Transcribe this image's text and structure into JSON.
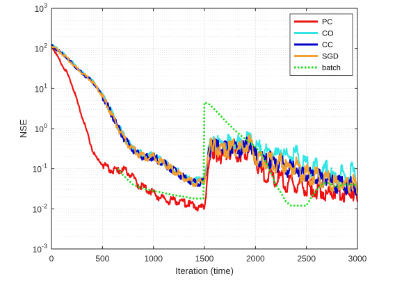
{
  "chart_data": {
    "type": "line",
    "title": "",
    "xlabel": "Iteration (time)",
    "ylabel": "NSE",
    "yscale": "log",
    "xlim": [
      0,
      3000
    ],
    "ylim": [
      0.001,
      1000
    ],
    "xticks": [
      0,
      500,
      1000,
      1500,
      2000,
      2500,
      3000
    ],
    "xtick_labels": [
      "0",
      "500",
      "1000",
      "1500",
      "2000",
      "2500",
      "3000"
    ],
    "yticks": [
      0.001,
      0.01,
      0.1,
      1,
      10,
      100,
      1000
    ],
    "ytick_labels": [
      {
        "base": "10",
        "exp": "-3"
      },
      {
        "base": "10",
        "exp": "-2"
      },
      {
        "base": "10",
        "exp": "-1"
      },
      {
        "base": "10",
        "exp": "0"
      },
      {
        "base": "10",
        "exp": "1"
      },
      {
        "base": "10",
        "exp": "2"
      },
      {
        "base": "10",
        "exp": "3"
      }
    ],
    "grid": true,
    "minor_grid": true,
    "legend_position": "top-right",
    "series": [
      {
        "name": "PC",
        "color": "#ee1111",
        "style": "solid",
        "x": [
          0,
          50,
          100,
          150,
          200,
          250,
          300,
          350,
          400,
          450,
          500,
          550,
          600,
          650,
          700,
          750,
          800,
          850,
          900,
          950,
          1000,
          1050,
          1100,
          1150,
          1200,
          1250,
          1300,
          1350,
          1400,
          1450,
          1500,
          1520,
          1540,
          1560,
          1580,
          1600,
          1650,
          1700,
          1750,
          1800,
          1850,
          1900,
          1950,
          2000,
          2050,
          2100,
          2150,
          2200,
          2250,
          2300,
          2350,
          2400,
          2450,
          2500,
          2550,
          2600,
          2650,
          2700,
          2750,
          2800,
          2850,
          2900,
          2950,
          3000
        ],
        "y": [
          120,
          70,
          40,
          25,
          13,
          5,
          2.0,
          0.8,
          0.3,
          0.17,
          0.13,
          0.1,
          0.09,
          0.09,
          0.1,
          0.08,
          0.06,
          0.04,
          0.035,
          0.03,
          0.025,
          0.02,
          0.018,
          0.016,
          0.016,
          0.015,
          0.014,
          0.013,
          0.012,
          0.01,
          0.012,
          0.03,
          0.12,
          0.22,
          0.26,
          0.27,
          0.22,
          0.2,
          0.28,
          0.22,
          0.24,
          0.26,
          0.3,
          0.2,
          0.08,
          0.06,
          0.07,
          0.05,
          0.06,
          0.04,
          0.05,
          0.035,
          0.045,
          0.03,
          0.035,
          0.025,
          0.03,
          0.02,
          0.03,
          0.025,
          0.025,
          0.02,
          0.03,
          0.015
        ]
      },
      {
        "name": "CO",
        "color": "#33e5e5",
        "style": "solid",
        "x": [
          0,
          50,
          100,
          150,
          200,
          250,
          300,
          350,
          400,
          450,
          500,
          550,
          600,
          650,
          700,
          750,
          800,
          850,
          900,
          950,
          1000,
          1050,
          1100,
          1150,
          1200,
          1250,
          1300,
          1350,
          1400,
          1450,
          1500,
          1520,
          1540,
          1560,
          1580,
          1600,
          1650,
          1700,
          1750,
          1800,
          1850,
          1900,
          1950,
          2000,
          2050,
          2100,
          2150,
          2200,
          2250,
          2300,
          2350,
          2400,
          2450,
          2500,
          2550,
          2600,
          2650,
          2700,
          2750,
          2800,
          2850,
          2900,
          2950,
          3000
        ],
        "y": [
          125,
          100,
          80,
          60,
          45,
          33,
          25,
          20,
          16,
          11,
          7,
          4,
          2.2,
          1.2,
          0.7,
          0.45,
          0.32,
          0.26,
          0.22,
          0.2,
          0.22,
          0.17,
          0.15,
          0.12,
          0.1,
          0.08,
          0.065,
          0.055,
          0.05,
          0.05,
          0.055,
          0.12,
          0.3,
          0.45,
          0.5,
          0.5,
          0.4,
          0.5,
          0.4,
          0.5,
          0.4,
          0.5,
          0.65,
          0.3,
          0.35,
          0.25,
          0.3,
          0.2,
          0.3,
          0.2,
          0.2,
          0.25,
          0.12,
          0.15,
          0.1,
          0.12,
          0.08,
          0.1,
          0.07,
          0.06,
          0.08,
          0.05,
          0.1,
          0.04
        ]
      },
      {
        "name": "CC",
        "color": "#0000cc",
        "style": "solid",
        "x": [
          0,
          50,
          100,
          150,
          200,
          250,
          300,
          350,
          400,
          450,
          500,
          550,
          600,
          650,
          700,
          750,
          800,
          850,
          900,
          950,
          1000,
          1050,
          1100,
          1150,
          1200,
          1250,
          1300,
          1350,
          1400,
          1450,
          1500,
          1520,
          1540,
          1560,
          1580,
          1600,
          1650,
          1700,
          1750,
          1800,
          1850,
          1900,
          1950,
          2000,
          2050,
          2100,
          2150,
          2200,
          2250,
          2300,
          2350,
          2400,
          2450,
          2500,
          2550,
          2600,
          2650,
          2700,
          2750,
          2800,
          2850,
          2900,
          2950,
          3000
        ],
        "y": [
          120,
          95,
          75,
          58,
          43,
          32,
          24,
          19,
          15,
          10,
          6.5,
          3.7,
          2.0,
          1.1,
          0.65,
          0.42,
          0.3,
          0.24,
          0.2,
          0.19,
          0.2,
          0.16,
          0.14,
          0.11,
          0.09,
          0.075,
          0.06,
          0.05,
          0.045,
          0.045,
          0.05,
          0.1,
          0.25,
          0.35,
          0.38,
          0.37,
          0.3,
          0.32,
          0.3,
          0.35,
          0.3,
          0.35,
          0.45,
          0.2,
          0.18,
          0.15,
          0.17,
          0.12,
          0.15,
          0.1,
          0.1,
          0.12,
          0.07,
          0.08,
          0.06,
          0.07,
          0.05,
          0.06,
          0.045,
          0.04,
          0.05,
          0.035,
          0.05,
          0.03
        ]
      },
      {
        "name": "SGD",
        "color": "#f0a030",
        "style": "solid",
        "x": [
          0,
          50,
          100,
          150,
          200,
          250,
          300,
          350,
          400,
          450,
          500,
          550,
          600,
          650,
          700,
          750,
          800,
          850,
          900,
          950,
          1000,
          1050,
          1100,
          1150,
          1200,
          1250,
          1300,
          1350,
          1400,
          1450,
          1500,
          1520,
          1540,
          1560,
          1580,
          1600,
          1650,
          1700,
          1750,
          1800,
          1850,
          1900,
          1950,
          2000,
          2050,
          2100,
          2150,
          2200,
          2250,
          2300,
          2350,
          2400,
          2450,
          2500,
          2550,
          2600,
          2650,
          2700,
          2750,
          2800,
          2850,
          2900,
          2950,
          3000
        ],
        "y": [
          120,
          95,
          75,
          58,
          43,
          32,
          24,
          19,
          15,
          10,
          6.5,
          3.7,
          2.0,
          1.1,
          0.65,
          0.42,
          0.3,
          0.24,
          0.2,
          0.19,
          0.2,
          0.16,
          0.14,
          0.11,
          0.09,
          0.075,
          0.06,
          0.05,
          0.045,
          0.045,
          0.05,
          0.1,
          0.25,
          0.35,
          0.38,
          0.37,
          0.3,
          0.32,
          0.3,
          0.35,
          0.3,
          0.35,
          0.45,
          0.2,
          0.18,
          0.15,
          0.17,
          0.12,
          0.15,
          0.1,
          0.1,
          0.12,
          0.07,
          0.08,
          0.06,
          0.07,
          0.05,
          0.06,
          0.045,
          0.04,
          0.05,
          0.035,
          0.05,
          0.03
        ]
      },
      {
        "name": "batch",
        "color": "#22dd22",
        "style": "dotted",
        "x": [
          650,
          700,
          800,
          900,
          1000,
          1100,
          1200,
          1300,
          1400,
          1490,
          1500,
          1550,
          1600,
          1650,
          1700,
          1750,
          1800,
          1850,
          1900,
          1950,
          2000,
          2050,
          2100,
          2150,
          2200,
          2250,
          2300,
          2350,
          2400,
          2450,
          2500,
          2550,
          2600,
          2650,
          2700,
          2750,
          2800,
          2850,
          2900,
          2950,
          3000
        ],
        "y": [
          0.1,
          0.07,
          0.04,
          0.032,
          0.028,
          0.025,
          0.022,
          0.02,
          0.018,
          0.018,
          4.5,
          4.0,
          3.0,
          2.2,
          1.6,
          1.2,
          0.9,
          0.7,
          0.55,
          0.45,
          0.35,
          0.25,
          0.15,
          0.08,
          0.04,
          0.025,
          0.015,
          0.012,
          0.012,
          0.012,
          0.012,
          0.02,
          0.03,
          0.04,
          0.045,
          0.04,
          0.035,
          0.04,
          0.04,
          0.04,
          0.04
        ]
      }
    ]
  }
}
